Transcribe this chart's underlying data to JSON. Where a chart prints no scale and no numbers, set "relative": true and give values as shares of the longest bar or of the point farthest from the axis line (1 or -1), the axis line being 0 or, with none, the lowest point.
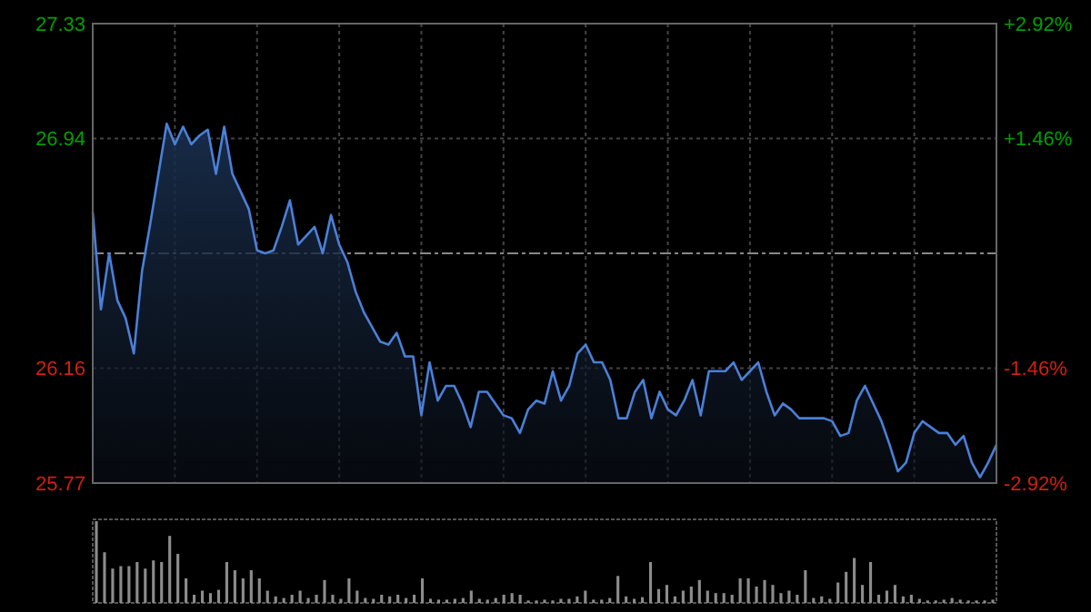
{
  "chart_data": [
    {
      "type": "area",
      "categories": [
        null,
        null,
        null,
        null,
        null,
        null,
        null,
        null,
        null,
        null,
        null,
        null,
        null,
        null,
        null,
        null,
        null,
        null,
        null,
        null,
        null,
        null,
        null,
        null,
        null,
        null,
        null,
        null,
        null,
        null,
        null,
        null,
        null,
        null,
        null,
        null,
        null,
        null,
        null,
        null,
        null,
        null,
        null,
        null,
        null,
        null,
        null,
        null,
        null,
        null,
        null,
        null,
        null,
        null,
        null,
        null,
        null,
        null,
        null,
        null,
        null,
        null,
        null,
        null,
        null,
        null,
        null,
        null,
        null,
        null,
        null,
        null,
        null,
        null,
        null,
        null,
        null,
        null,
        null,
        null,
        null,
        null,
        null,
        null,
        null,
        null,
        null,
        null,
        null,
        null,
        null,
        null,
        null,
        null,
        null,
        null,
        null,
        null,
        null,
        null,
        null,
        null,
        null,
        null,
        null,
        null,
        null,
        null,
        null,
        null,
        null
      ],
      "values": [
        26.69,
        26.36,
        26.55,
        26.39,
        26.33,
        26.21,
        26.49,
        26.65,
        26.82,
        26.99,
        26.92,
        26.98,
        26.92,
        26.95,
        26.97,
        26.82,
        26.98,
        26.82,
        26.76,
        26.7,
        26.56,
        26.55,
        26.56,
        26.64,
        26.73,
        26.58,
        26.61,
        26.64,
        26.55,
        26.68,
        26.58,
        26.52,
        26.42,
        26.35,
        26.3,
        26.25,
        26.24,
        26.28,
        26.2,
        26.2,
        26.0,
        26.18,
        26.05,
        26.1,
        26.1,
        26.04,
        25.96,
        26.08,
        26.08,
        26.04,
        26.0,
        25.99,
        25.94,
        26.02,
        26.05,
        26.04,
        26.15,
        26.05,
        26.1,
        26.21,
        26.24,
        26.18,
        26.18,
        26.12,
        25.99,
        25.99,
        26.08,
        26.12,
        25.99,
        26.08,
        26.02,
        26.0,
        26.05,
        26.12,
        26.0,
        26.15,
        26.15,
        26.15,
        26.18,
        26.12,
        26.15,
        26.18,
        26.08,
        26.0,
        26.04,
        26.02,
        25.99,
        25.99,
        25.99,
        25.99,
        25.98,
        25.93,
        25.94,
        26.05,
        26.1,
        26.04,
        25.98,
        25.9,
        25.81,
        25.84,
        25.94,
        25.98,
        25.96,
        25.94,
        25.94,
        25.9,
        25.93,
        25.84,
        25.79,
        25.84,
        25.9
      ],
      "color": "#4a80d8",
      "ylim": [
        25.77,
        27.33
      ],
      "yticks": [
        25.77,
        26.16,
        26.94,
        27.33
      ],
      "ref_lines": [
        {
          "axis": "y",
          "value": 26.55,
          "color": "#888888",
          "line_style": "dashed"
        }
      ],
      "y2lim": [
        -2.92,
        2.92
      ],
      "y2ticks": [
        {
          "value": -2.92,
          "label": "-2.92%"
        },
        {
          "value": -1.46,
          "label": "-1.46%"
        },
        {
          "value": 1.46,
          "label": "+1.46%"
        },
        {
          "value": 2.92,
          "label": "+2.92%"
        }
      ],
      "grid": true
    },
    {
      "type": "bar",
      "relative": true,
      "color": "#8c8c8c",
      "categories": [
        null,
        null,
        null,
        null,
        null,
        null,
        null,
        null,
        null,
        null,
        null,
        null,
        null,
        null,
        null,
        null,
        null,
        null,
        null,
        null,
        null,
        null,
        null,
        null,
        null,
        null,
        null,
        null,
        null,
        null,
        null,
        null,
        null,
        null,
        null,
        null,
        null,
        null,
        null,
        null,
        null,
        null,
        null,
        null,
        null,
        null,
        null,
        null,
        null,
        null,
        null,
        null,
        null,
        null,
        null,
        null,
        null,
        null,
        null,
        null,
        null,
        null,
        null,
        null,
        null,
        null,
        null,
        null,
        null,
        null,
        null,
        null,
        null,
        null,
        null,
        null,
        null,
        null,
        null,
        null,
        null,
        null,
        null,
        null,
        null,
        null,
        null,
        null,
        null,
        null,
        null,
        null,
        null,
        null,
        null,
        null,
        null,
        null,
        null,
        null,
        null,
        null,
        null,
        null,
        null,
        null,
        null,
        null,
        null,
        null,
        null
      ],
      "values": [
        1.0,
        0.62,
        0.42,
        0.45,
        0.45,
        0.5,
        0.42,
        0.52,
        0.5,
        0.82,
        0.6,
        0.3,
        0.1,
        0.15,
        0.12,
        0.16,
        0.5,
        0.4,
        0.3,
        0.4,
        0.3,
        0.15,
        0.08,
        0.06,
        0.1,
        0.15,
        0.06,
        0.1,
        0.28,
        0.1,
        0.05,
        0.3,
        0.15,
        0.06,
        0.05,
        0.1,
        0.08,
        0.1,
        0.06,
        0.1,
        0.3,
        0.05,
        0.04,
        0.04,
        0.05,
        0.06,
        0.15,
        0.05,
        0.04,
        0.06,
        0.1,
        0.12,
        0.1,
        0.03,
        0.03,
        0.04,
        0.03,
        0.05,
        0.05,
        0.08,
        0.15,
        0.04,
        0.04,
        0.06,
        0.33,
        0.08,
        0.05,
        0.07,
        0.5,
        0.17,
        0.22,
        0.08,
        0.15,
        0.2,
        0.28,
        0.15,
        0.12,
        0.12,
        0.1,
        0.3,
        0.3,
        0.2,
        0.28,
        0.22,
        0.12,
        0.15,
        0.1,
        0.4,
        0.06,
        0.08,
        0.05,
        0.25,
        0.38,
        0.55,
        0.22,
        0.5,
        0.1,
        0.15,
        0.22,
        0.08,
        0.1,
        0.05,
        0.03,
        0.03,
        0.04,
        0.06,
        0.04,
        0.03,
        0.03,
        0.03,
        0.04
      ]
    }
  ]
}
